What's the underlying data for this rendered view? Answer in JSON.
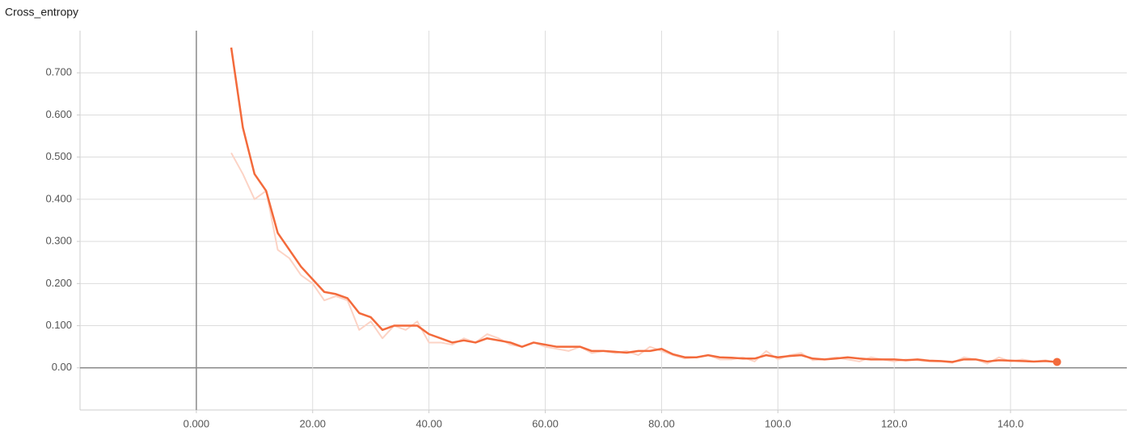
{
  "chart_data": {
    "type": "line",
    "title": "Cross_entropy",
    "x": [
      6,
      8,
      10,
      12,
      14,
      16,
      18,
      20,
      22,
      24,
      26,
      28,
      30,
      32,
      34,
      36,
      38,
      40,
      42,
      44,
      46,
      48,
      50,
      52,
      54,
      56,
      58,
      60,
      62,
      64,
      66,
      68,
      70,
      72,
      74,
      76,
      78,
      80,
      82,
      84,
      86,
      88,
      90,
      92,
      94,
      96,
      98,
      100,
      102,
      104,
      106,
      108,
      110,
      112,
      114,
      116,
      118,
      120,
      122,
      124,
      126,
      128,
      130,
      132,
      134,
      136,
      138,
      140,
      142,
      144,
      146,
      148
    ],
    "series": [
      {
        "color": "#fcd3c5",
        "values": [
          0.51,
          0.46,
          0.4,
          0.42,
          0.28,
          0.26,
          0.22,
          0.2,
          0.16,
          0.17,
          0.16,
          0.09,
          0.11,
          0.07,
          0.1,
          0.09,
          0.11,
          0.06,
          0.06,
          0.055,
          0.07,
          0.06,
          0.08,
          0.07,
          0.055,
          0.05,
          0.06,
          0.05,
          0.045,
          0.04,
          0.05,
          0.035,
          0.04,
          0.035,
          0.04,
          0.03,
          0.05,
          0.04,
          0.03,
          0.022,
          0.025,
          0.03,
          0.02,
          0.02,
          0.025,
          0.015,
          0.04,
          0.02,
          0.03,
          0.035,
          0.018,
          0.02,
          0.025,
          0.02,
          0.015,
          0.025,
          0.02,
          0.015,
          0.02,
          0.018,
          0.015,
          0.015,
          0.012,
          0.025,
          0.02,
          0.01,
          0.025,
          0.015,
          0.02,
          0.015,
          0.018,
          0.012
        ]
      },
      {
        "color": "#f36a3b",
        "values": [
          0.76,
          0.57,
          0.46,
          0.42,
          0.32,
          0.28,
          0.24,
          0.21,
          0.18,
          0.175,
          0.165,
          0.13,
          0.12,
          0.09,
          0.1,
          0.1,
          0.1,
          0.08,
          0.07,
          0.06,
          0.065,
          0.06,
          0.07,
          0.065,
          0.06,
          0.05,
          0.06,
          0.055,
          0.05,
          0.05,
          0.05,
          0.04,
          0.04,
          0.038,
          0.036,
          0.04,
          0.04,
          0.045,
          0.032,
          0.025,
          0.025,
          0.03,
          0.025,
          0.024,
          0.022,
          0.022,
          0.03,
          0.025,
          0.028,
          0.03,
          0.022,
          0.02,
          0.022,
          0.025,
          0.022,
          0.02,
          0.02,
          0.02,
          0.018,
          0.02,
          0.017,
          0.016,
          0.014,
          0.02,
          0.02,
          0.015,
          0.018,
          0.017,
          0.016,
          0.015,
          0.016,
          0.014
        ]
      }
    ],
    "xlim": [
      -20,
      160
    ],
    "xticks": [
      {
        "value": 0,
        "label": "0.000"
      },
      {
        "value": 20,
        "label": "20.00"
      },
      {
        "value": 40,
        "label": "40.00"
      },
      {
        "value": 60,
        "label": "60.00"
      },
      {
        "value": 80,
        "label": "80.00"
      },
      {
        "value": 100,
        "label": "100.0"
      },
      {
        "value": 120,
        "label": "120.0"
      },
      {
        "value": 140,
        "label": "140.0"
      }
    ],
    "ylim": [
      -0.1,
      0.8
    ],
    "yticks": [
      {
        "value": 0,
        "label": "0.00"
      },
      {
        "value": 0.1,
        "label": "0.100"
      },
      {
        "value": 0.2,
        "label": "0.200"
      },
      {
        "value": 0.3,
        "label": "0.300"
      },
      {
        "value": 0.4,
        "label": "0.400"
      },
      {
        "value": 0.5,
        "label": "0.500"
      },
      {
        "value": 0.6,
        "label": "0.600"
      },
      {
        "value": 0.7,
        "label": "0.700"
      }
    ],
    "grid": true
  }
}
